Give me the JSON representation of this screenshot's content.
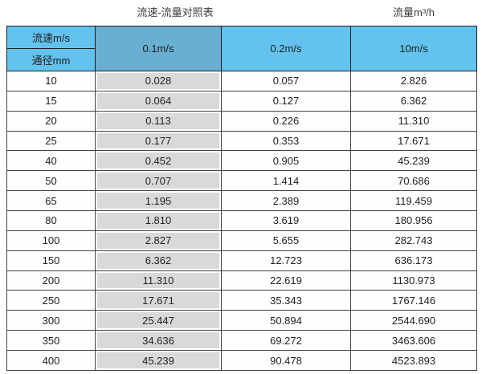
{
  "titles": {
    "main": "流速-流量对照表",
    "unit": "流量m³/h"
  },
  "table": {
    "header": {
      "col1_top": "流速m/s",
      "col1_bottom": "通径mm",
      "velocities": [
        "0.1m/s",
        "0.2m/s",
        "10m/s"
      ]
    },
    "rows": [
      {
        "diameter": "10",
        "values": [
          "0.028",
          "0.057",
          "2.826"
        ]
      },
      {
        "diameter": "15",
        "values": [
          "0.064",
          "0.127",
          "6.362"
        ]
      },
      {
        "diameter": "20",
        "values": [
          "0.113",
          "0.226",
          "11.310"
        ]
      },
      {
        "diameter": "25",
        "values": [
          "0.177",
          "0.353",
          "17.671"
        ]
      },
      {
        "diameter": "40",
        "values": [
          "0.452",
          "0.905",
          "45.239"
        ]
      },
      {
        "diameter": "50",
        "values": [
          "0.707",
          "1.414",
          "70.686"
        ]
      },
      {
        "diameter": "65",
        "values": [
          "1.195",
          "2.389",
          "119.459"
        ]
      },
      {
        "diameter": "80",
        "values": [
          "1.810",
          "3.619",
          "180.956"
        ]
      },
      {
        "diameter": "100",
        "values": [
          "2.827",
          "5.655",
          "282.743"
        ]
      },
      {
        "diameter": "150",
        "values": [
          "6.362",
          "12.723",
          "636.173"
        ]
      },
      {
        "diameter": "200",
        "values": [
          "11.310",
          "22.619",
          "1130.973"
        ]
      },
      {
        "diameter": "250",
        "values": [
          "17.671",
          "35.343",
          "1767.146"
        ]
      },
      {
        "diameter": "300",
        "values": [
          "25.447",
          "50.894",
          "2544.690"
        ]
      },
      {
        "diameter": "350",
        "values": [
          "34.636",
          "69.272",
          "3463.606"
        ]
      },
      {
        "diameter": "400",
        "values": [
          "45.239",
          "90.478",
          "4523.893"
        ]
      }
    ]
  },
  "colors": {
    "header_blue": "#63C2EE",
    "header_dark_blue": "#68AFD2",
    "gray_column": "#D9D9D9",
    "border": "#424242"
  },
  "chart_data": {
    "type": "table",
    "title": "流速-流量对照表",
    "unit_label": "流量m³/h",
    "columns": [
      "通径mm",
      "0.1m/s",
      "0.2m/s",
      "10m/s"
    ],
    "rows": [
      [
        "10",
        0.028,
        0.057,
        2.826
      ],
      [
        "15",
        0.064,
        0.127,
        6.362
      ],
      [
        "20",
        0.113,
        0.226,
        11.31
      ],
      [
        "25",
        0.177,
        0.353,
        17.671
      ],
      [
        "40",
        0.452,
        0.905,
        45.239
      ],
      [
        "50",
        0.707,
        1.414,
        70.686
      ],
      [
        "65",
        1.195,
        2.389,
        119.459
      ],
      [
        "80",
        1.81,
        3.619,
        180.956
      ],
      [
        "100",
        2.827,
        5.655,
        282.743
      ],
      [
        "150",
        6.362,
        12.723,
        636.173
      ],
      [
        "200",
        11.31,
        22.619,
        1130.973
      ],
      [
        "250",
        17.671,
        35.343,
        1767.146
      ],
      [
        "300",
        25.447,
        50.894,
        2544.69
      ],
      [
        "350",
        34.636,
        69.272,
        3463.606
      ],
      [
        "400",
        45.239,
        90.478,
        4523.893
      ]
    ]
  }
}
